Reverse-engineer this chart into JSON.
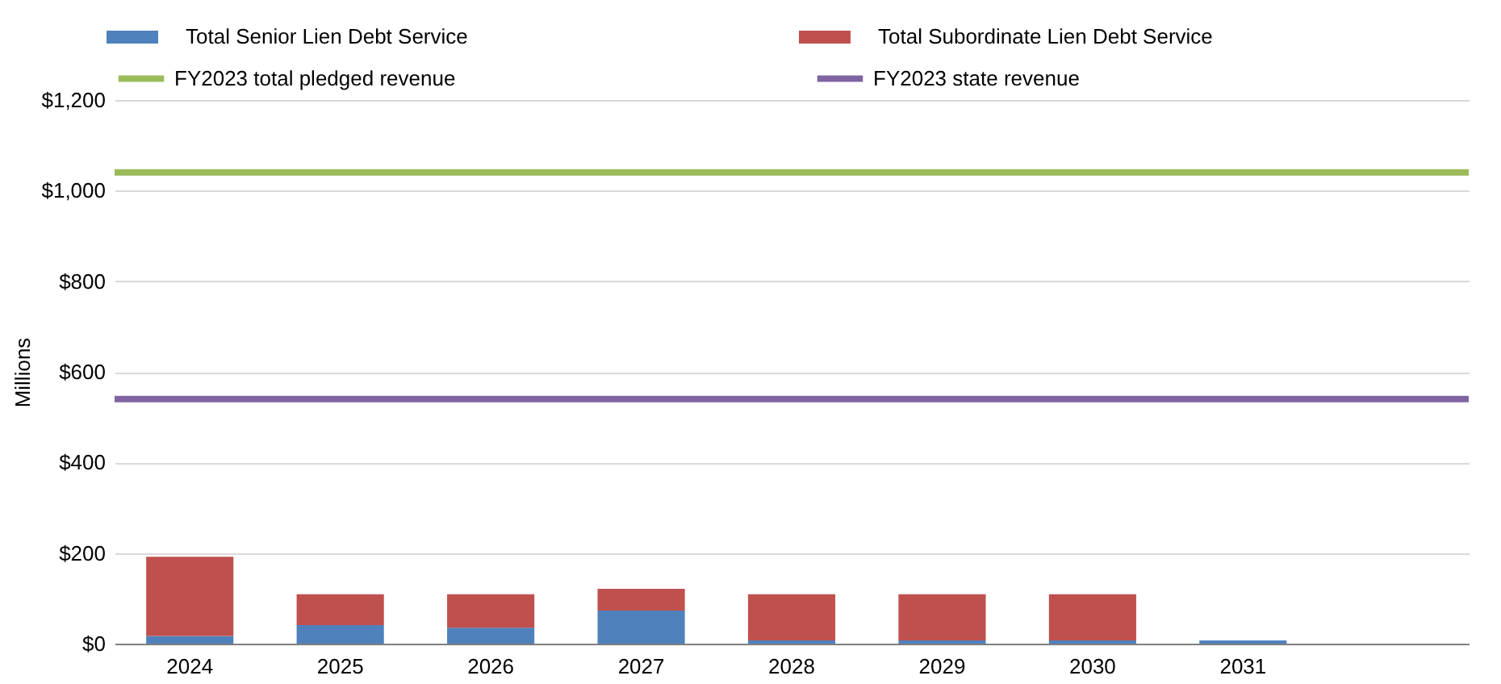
{
  "chart_data": {
    "type": "bar",
    "ylabel": "Millions",
    "stacked": true,
    "grid": "y",
    "legend": "top",
    "categories": [
      "2024",
      "2025",
      "2026",
      "2027",
      "2028",
      "2029",
      "2030",
      "2031",
      null
    ],
    "series": [
      {
        "name": "Total Senior Lien Debt Service",
        "color": "#4f81bd",
        "values": [
          17,
          41,
          35,
          73,
          7,
          7,
          7,
          7,
          null
        ]
      },
      {
        "name": "Total Subordinate Lien Debt Service",
        "color": "#c0504d",
        "values": [
          175,
          68,
          74,
          48,
          102,
          102,
          102,
          null,
          null
        ]
      }
    ],
    "ref_lines": [
      {
        "axis": "y",
        "value": 1040,
        "label": "FY2023 total pledged revenue",
        "color": "#9bbb59"
      },
      {
        "axis": "y",
        "value": 540,
        "label": "FY2023 state revenue",
        "color": "#8064a2"
      }
    ],
    "ylim": [
      0,
      1200
    ],
    "yticks": [
      {
        "value": 0,
        "label": "$0"
      },
      {
        "value": 200,
        "label": "$200"
      },
      {
        "value": 400,
        "label": "$400"
      },
      {
        "value": 600,
        "label": "$600"
      },
      {
        "value": 800,
        "label": "$800"
      },
      {
        "value": 1000,
        "label": "$1,000"
      },
      {
        "value": 1200,
        "label": "$1,200"
      }
    ]
  }
}
